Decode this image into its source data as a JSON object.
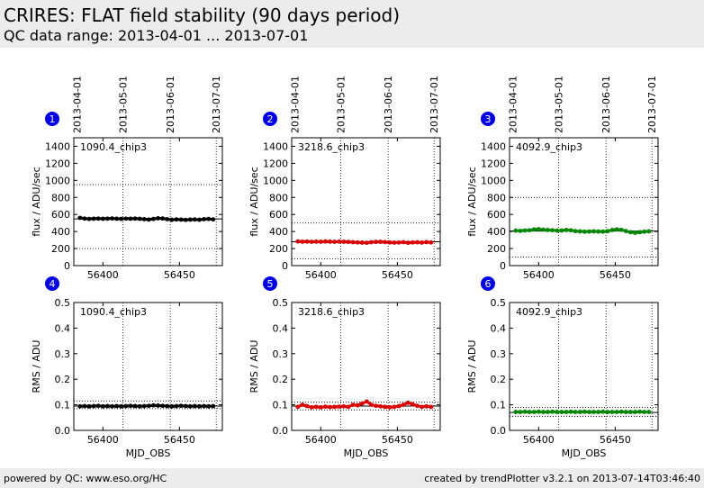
{
  "header": {
    "title": "CRIRES: FLAT field stability (90 days period)",
    "subtitle": "QC data range: 2013-04-01 ... 2013-07-01"
  },
  "footer": {
    "left": "powered by QC: www.eso.org/HC",
    "right": "created by trendPlotter v3.2.1 on 2013-07-14T03:46:40"
  },
  "colors": {
    "black": "#000000",
    "red": "#dd0000",
    "green": "#008800",
    "badge": "#0000ee"
  },
  "chart_data": [
    {
      "index": "1",
      "type": "scatter",
      "label": "1090.4_chip3",
      "color": "black",
      "xlabel": "",
      "ylabel": "flux / ADU/sec",
      "xlim": [
        56381,
        56478
      ],
      "ylim": [
        0,
        1500
      ],
      "yticks": [
        "0",
        "200",
        "400",
        "600",
        "800",
        "1000",
        "1200",
        "1400"
      ],
      "xticks": [
        "56400",
        "56450"
      ],
      "dates": [
        "2013-04-01",
        "2013-05-01",
        "2013-06-01",
        "2013-07-01"
      ],
      "mean": 548,
      "limits": [
        200,
        950
      ],
      "x": [
        56385,
        56388,
        56391,
        56394,
        56397,
        56400,
        56403,
        56406,
        56409,
        56412,
        56415,
        56418,
        56421,
        56424,
        56427,
        56430,
        56433,
        56436,
        56439,
        56442,
        56445,
        56448,
        56451,
        56454,
        56457,
        56460,
        56463,
        56466,
        56469,
        56472
      ],
      "y": [
        560,
        552,
        548,
        550,
        552,
        549,
        551,
        553,
        550,
        548,
        551,
        550,
        552,
        549,
        545,
        540,
        548,
        555,
        553,
        545,
        538,
        542,
        540,
        536,
        540,
        542,
        538,
        545,
        548,
        542
      ]
    },
    {
      "index": "2",
      "type": "scatter",
      "label": "3218.6_chip3",
      "color": "red",
      "xlabel": "",
      "ylabel": "flux / ADU/sec",
      "xlim": [
        56381,
        56478
      ],
      "ylim": [
        0,
        1500
      ],
      "yticks": [
        "0",
        "200",
        "400",
        "600",
        "800",
        "1000",
        "1200",
        "1400"
      ],
      "xticks": [
        "56400",
        "56450"
      ],
      "dates": [
        "2013-04-01",
        "2013-05-01",
        "2013-06-01",
        "2013-07-01"
      ],
      "mean": 280,
      "limits": [
        80,
        500
      ],
      "x": [
        56385,
        56388,
        56391,
        56394,
        56397,
        56400,
        56403,
        56406,
        56409,
        56412,
        56415,
        56418,
        56421,
        56424,
        56427,
        56430,
        56433,
        56436,
        56439,
        56442,
        56445,
        56448,
        56451,
        56454,
        56457,
        56460,
        56463,
        56466,
        56469,
        56472
      ],
      "y": [
        283,
        280,
        282,
        279,
        281,
        280,
        283,
        281,
        279,
        282,
        280,
        278,
        275,
        272,
        270,
        268,
        275,
        278,
        280,
        276,
        272,
        270,
        271,
        275,
        268,
        272,
        274,
        270,
        276,
        272
      ]
    },
    {
      "index": "3",
      "type": "scatter",
      "label": "4092.9_chip3",
      "color": "green",
      "xlabel": "",
      "ylabel": "flux / ADU/sec",
      "xlim": [
        56381,
        56478
      ],
      "ylim": [
        0,
        1500
      ],
      "yticks": [
        "0",
        "200",
        "400",
        "600",
        "800",
        "1000",
        "1200",
        "1400"
      ],
      "xticks": [
        "56400",
        "56450"
      ],
      "dates": [
        "2013-04-01",
        "2013-05-01",
        "2013-06-01",
        "2013-07-01"
      ],
      "mean": 405,
      "limits": [
        100,
        800
      ],
      "x": [
        56385,
        56388,
        56391,
        56394,
        56397,
        56400,
        56403,
        56406,
        56409,
        56412,
        56415,
        56418,
        56421,
        56424,
        56427,
        56430,
        56433,
        56436,
        56439,
        56442,
        56445,
        56448,
        56451,
        56454,
        56457,
        56460,
        56463,
        56466,
        56469,
        56472
      ],
      "y": [
        410,
        408,
        412,
        415,
        425,
        428,
        422,
        418,
        415,
        410,
        412,
        418,
        415,
        405,
        402,
        398,
        400,
        402,
        400,
        398,
        404,
        418,
        425,
        420,
        405,
        392,
        385,
        392,
        398,
        402
      ]
    },
    {
      "index": "4",
      "type": "scatter",
      "label": "1090.4_chip3",
      "color": "black",
      "xlabel": "MJD_OBS",
      "ylabel": "RMS / ADU",
      "xlim": [
        56381,
        56478
      ],
      "ylim": [
        0,
        0.5
      ],
      "yticks": [
        "0.0",
        "0.1",
        "0.2",
        "0.3",
        "0.4",
        "0.5"
      ],
      "xticks": [
        "56400",
        "56450"
      ],
      "mean": 0.095,
      "limits": [
        0.085,
        0.115
      ],
      "x": [
        56385,
        56388,
        56391,
        56394,
        56397,
        56400,
        56403,
        56406,
        56409,
        56412,
        56415,
        56418,
        56421,
        56424,
        56427,
        56430,
        56433,
        56436,
        56439,
        56442,
        56445,
        56448,
        56451,
        56454,
        56457,
        56460,
        56463,
        56466,
        56469,
        56472
      ],
      "y": [
        0.094,
        0.095,
        0.094,
        0.095,
        0.096,
        0.094,
        0.095,
        0.094,
        0.095,
        0.094,
        0.095,
        0.096,
        0.095,
        0.094,
        0.095,
        0.096,
        0.098,
        0.097,
        0.096,
        0.095,
        0.094,
        0.095,
        0.096,
        0.095,
        0.094,
        0.095,
        0.094,
        0.095,
        0.094,
        0.095
      ]
    },
    {
      "index": "5",
      "type": "scatter",
      "label": "3218.6_chip3",
      "color": "red",
      "xlabel": "MJD_OBS",
      "ylabel": "RMS / ADU",
      "xlim": [
        56381,
        56478
      ],
      "ylim": [
        0,
        0.5
      ],
      "yticks": [
        "0.0",
        "0.1",
        "0.2",
        "0.3",
        "0.4",
        "0.5"
      ],
      "xticks": [
        "56400",
        "56450"
      ],
      "mean": 0.095,
      "limits": [
        0.08,
        0.11
      ],
      "x": [
        56385,
        56388,
        56391,
        56394,
        56397,
        56400,
        56403,
        56406,
        56409,
        56412,
        56415,
        56418,
        56421,
        56424,
        56427,
        56430,
        56433,
        56436,
        56439,
        56442,
        56445,
        56448,
        56451,
        56454,
        56457,
        56460,
        56463,
        56466,
        56469,
        56472
      ],
      "y": [
        0.092,
        0.1,
        0.095,
        0.09,
        0.092,
        0.09,
        0.093,
        0.091,
        0.092,
        0.093,
        0.094,
        0.092,
        0.1,
        0.098,
        0.105,
        0.113,
        0.1,
        0.096,
        0.094,
        0.092,
        0.09,
        0.092,
        0.095,
        0.1,
        0.108,
        0.102,
        0.096,
        0.092,
        0.094,
        0.092
      ]
    },
    {
      "index": "6",
      "type": "scatter",
      "label": "4092.9_chip3",
      "color": "green",
      "xlabel": "MJD_OBS",
      "ylabel": "RMS / ADU",
      "xlim": [
        56381,
        56478
      ],
      "ylim": [
        0,
        0.5
      ],
      "yticks": [
        "0.0",
        "0.1",
        "0.2",
        "0.3",
        "0.4",
        "0.5"
      ],
      "xticks": [
        "56400",
        "56450"
      ],
      "mean": 0.07,
      "limits": [
        0.055,
        0.09
      ],
      "x": [
        56385,
        56388,
        56391,
        56394,
        56397,
        56400,
        56403,
        56406,
        56409,
        56412,
        56415,
        56418,
        56421,
        56424,
        56427,
        56430,
        56433,
        56436,
        56439,
        56442,
        56445,
        56448,
        56451,
        56454,
        56457,
        56460,
        56463,
        56466,
        56469,
        56472
      ],
      "y": [
        0.072,
        0.072,
        0.073,
        0.072,
        0.072,
        0.073,
        0.072,
        0.072,
        0.073,
        0.072,
        0.072,
        0.072,
        0.073,
        0.072,
        0.072,
        0.073,
        0.072,
        0.072,
        0.072,
        0.073,
        0.072,
        0.072,
        0.072,
        0.073,
        0.072,
        0.072,
        0.072,
        0.073,
        0.072,
        0.072
      ]
    }
  ]
}
